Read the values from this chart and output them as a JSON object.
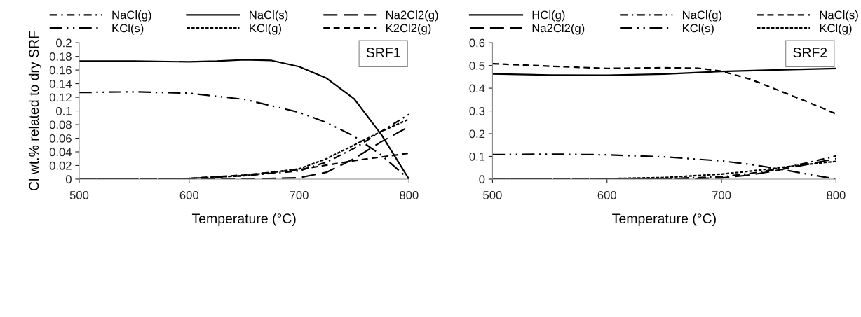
{
  "chart_data": [
    {
      "type": "line",
      "xlabel": "Temperature (°C)",
      "ylabel": "Cl wt.% related to dry SRF",
      "annotations": [
        "SRF1"
      ],
      "legend": "top",
      "grid": false,
      "xlim": [
        500,
        800
      ],
      "xticks": [
        500,
        600,
        700,
        800
      ],
      "ylim": [
        0,
        0.2
      ],
      "yticks": [
        0,
        0.02,
        0.04,
        0.06,
        0.08,
        0.1,
        0.12,
        0.14,
        0.16,
        0.18,
        0.2
      ],
      "series": [
        {
          "name": "NaCl(g)",
          "color": "#000000",
          "line_style": "dashdot",
          "x": [
            500,
            550,
            600,
            650,
            700,
            725,
            750,
            775,
            800
          ],
          "values": [
            0,
            0,
            0.001,
            0.005,
            0.012,
            0.025,
            0.045,
            0.07,
            0.095
          ]
        },
        {
          "name": "NaCl(s)",
          "color": "#000000",
          "line_style": "solid",
          "x": [
            500,
            550,
            600,
            625,
            650,
            675,
            700,
            725,
            750,
            775,
            800
          ],
          "values": [
            0.173,
            0.173,
            0.172,
            0.173,
            0.175,
            0.174,
            0.165,
            0.148,
            0.118,
            0.065,
            0
          ]
        },
        {
          "name": "Na2Cl2(g)",
          "color": "#000000",
          "line_style": "longdash",
          "x": [
            500,
            600,
            650,
            700,
            725,
            750,
            775,
            800
          ],
          "values": [
            0,
            0,
            0,
            0.002,
            0.01,
            0.03,
            0.055,
            0.077
          ]
        },
        {
          "name": "KCl(s)",
          "color": "#000000",
          "line_style": "dashdotdot",
          "x": [
            500,
            550,
            600,
            650,
            700,
            725,
            750,
            775,
            800
          ],
          "values": [
            0.127,
            0.128,
            0.126,
            0.117,
            0.098,
            0.083,
            0.063,
            0.035,
            0
          ]
        },
        {
          "name": "KCl(g)",
          "color": "#000000",
          "line_style": "dotted",
          "x": [
            500,
            550,
            600,
            650,
            700,
            725,
            750,
            775,
            800
          ],
          "values": [
            0,
            0,
            0.001,
            0.005,
            0.015,
            0.03,
            0.05,
            0.07,
            0.088
          ]
        },
        {
          "name": "K2Cl2(g)",
          "color": "#000000",
          "line_style": "dashed",
          "x": [
            500,
            550,
            600,
            650,
            700,
            750,
            800
          ],
          "values": [
            0,
            0,
            0.001,
            0.006,
            0.014,
            0.027,
            0.038
          ]
        }
      ]
    },
    {
      "type": "line",
      "xlabel": "Temperature (°C)",
      "annotations": [
        "SRF2"
      ],
      "legend": "top",
      "grid": false,
      "xlim": [
        500,
        800
      ],
      "xticks": [
        500,
        600,
        700,
        800
      ],
      "ylim": [
        0,
        0.6
      ],
      "yticks": [
        0,
        0.1,
        0.2,
        0.3,
        0.4,
        0.5,
        0.6
      ],
      "series": [
        {
          "name": "HCl(g)",
          "color": "#000000",
          "line_style": "solid",
          "x": [
            500,
            550,
            600,
            650,
            700,
            750,
            800
          ],
          "values": [
            0.463,
            0.458,
            0.457,
            0.462,
            0.474,
            0.481,
            0.487
          ]
        },
        {
          "name": "NaCl(g)",
          "color": "#000000",
          "line_style": "dashdot",
          "x": [
            500,
            600,
            650,
            700,
            725,
            750,
            775,
            800
          ],
          "values": [
            0,
            0,
            0.002,
            0.01,
            0.025,
            0.045,
            0.072,
            0.102
          ]
        },
        {
          "name": "NaCl(s)",
          "color": "#000000",
          "line_style": "dashed",
          "x": [
            500,
            550,
            600,
            650,
            680,
            700,
            725,
            750,
            775,
            800
          ],
          "values": [
            0.508,
            0.497,
            0.487,
            0.49,
            0.488,
            0.475,
            0.44,
            0.39,
            0.34,
            0.287
          ]
        },
        {
          "name": "Na2Cl2(g)",
          "color": "#000000",
          "line_style": "longdash",
          "x": [
            500,
            600,
            650,
            700,
            725,
            750,
            775,
            800
          ],
          "values": [
            0,
            0,
            0,
            0.005,
            0.018,
            0.04,
            0.065,
            0.09
          ]
        },
        {
          "name": "KCl(s)",
          "color": "#000000",
          "line_style": "dashdotdot",
          "x": [
            500,
            550,
            600,
            650,
            700,
            725,
            750,
            775,
            800
          ],
          "values": [
            0.108,
            0.11,
            0.107,
            0.098,
            0.08,
            0.065,
            0.045,
            0.022,
            0
          ]
        },
        {
          "name": "KCl(g)",
          "color": "#000000",
          "line_style": "dotted",
          "x": [
            500,
            600,
            650,
            700,
            725,
            750,
            775,
            800
          ],
          "values": [
            0,
            0.002,
            0.007,
            0.022,
            0.035,
            0.05,
            0.065,
            0.078
          ]
        }
      ]
    }
  ]
}
